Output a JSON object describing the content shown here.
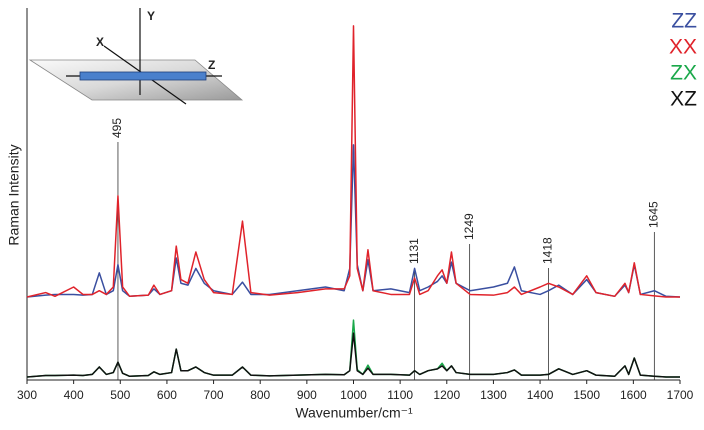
{
  "chart_data": {
    "type": "line",
    "x_label": "Wavenumber/cm⁻¹",
    "y_label": "Raman Intensity",
    "x": [
      300,
      340,
      360,
      400,
      420,
      440,
      455,
      470,
      485,
      495,
      505,
      520,
      560,
      572,
      585,
      610,
      620,
      630,
      645,
      662,
      680,
      700,
      740,
      762,
      780,
      820,
      880,
      940,
      980,
      992,
      1000,
      1008,
      1020,
      1031,
      1042,
      1080,
      1120,
      1131,
      1142,
      1160,
      1180,
      1190,
      1200,
      1210,
      1220,
      1250,
      1300,
      1330,
      1345,
      1360,
      1400,
      1418,
      1440,
      1470,
      1500,
      1520,
      1560,
      1582,
      1590,
      1602,
      1615,
      1645,
      1670,
      1700
    ],
    "series": [
      {
        "name": "ZZ",
        "color": "#3a4fa0",
        "values": [
          22.3,
          22.8,
          23,
          23,
          22.8,
          23,
          28.8,
          23,
          24,
          31,
          24,
          22.5,
          22.8,
          24.5,
          23,
          24,
          32.8,
          26,
          25.5,
          30,
          26,
          24,
          23,
          26.3,
          23,
          23,
          24,
          25,
          24,
          30,
          63.2,
          31,
          24,
          32.3,
          24,
          24.5,
          23.5,
          30,
          24,
          25,
          26.5,
          28,
          26,
          31.7,
          26,
          24,
          25,
          26,
          30.4,
          24,
          23,
          24,
          25.5,
          23,
          27,
          23.5,
          22.5,
          25.5,
          23.5,
          31,
          23,
          24,
          22.5,
          22.3
        ]
      },
      {
        "name": "XX",
        "color": "#e0232b",
        "values": [
          22.3,
          23.5,
          22.5,
          25,
          23,
          23,
          24,
          23,
          25,
          49.5,
          25,
          22.5,
          22.8,
          25.5,
          23,
          24,
          36,
          27,
          26,
          34.4,
          27,
          23.5,
          23,
          42.7,
          23.5,
          22.8,
          23.5,
          24.5,
          24.5,
          28,
          95.2,
          30,
          24,
          35,
          24,
          23,
          23,
          27.4,
          23,
          24,
          28,
          29.6,
          26,
          34.4,
          26,
          23,
          22.8,
          23.5,
          25,
          23,
          25,
          26,
          25,
          23,
          28,
          23.5,
          22.5,
          26,
          23.5,
          31.5,
          23,
          22.6,
          22.3,
          22.3
        ]
      },
      {
        "name": "ZX",
        "color": "#1aa84a",
        "values": [
          0.8,
          1.2,
          1.2,
          1.3,
          1.2,
          1.5,
          3.5,
          1.5,
          2,
          4.8,
          1.8,
          1,
          1.2,
          2.2,
          1.5,
          2,
          8.3,
          2.5,
          2.5,
          3.5,
          2,
          1.3,
          1.3,
          3.5,
          1.3,
          1.1,
          1.3,
          1.5,
          1.4,
          2.5,
          16.1,
          2.8,
          1.5,
          4,
          1.5,
          1.5,
          1.3,
          2.5,
          1.5,
          2.5,
          3,
          4.5,
          2.5,
          3.8,
          2,
          1.5,
          1.5,
          2,
          2.7,
          1.3,
          1.3,
          1.5,
          3,
          1.5,
          2.5,
          1.3,
          1,
          3.8,
          1.5,
          5.9,
          1.3,
          1,
          0.8,
          0.8
        ]
      },
      {
        "name": "XZ",
        "color": "#111111",
        "values": [
          0.8,
          1.2,
          1.2,
          1.3,
          1.2,
          1.5,
          3.5,
          1.5,
          2,
          4.8,
          1.8,
          1,
          1.2,
          2.2,
          1.5,
          2,
          8.3,
          2.5,
          2.5,
          3.5,
          2,
          1.3,
          1.3,
          3.5,
          1.3,
          1.1,
          1.3,
          1.5,
          1.4,
          2.5,
          12.6,
          2.5,
          1.5,
          3.2,
          1.5,
          1.5,
          1.3,
          2.5,
          1.5,
          2.5,
          3,
          3.8,
          2.5,
          3.8,
          2,
          1.5,
          1.5,
          2,
          2.7,
          1.3,
          1.3,
          1.5,
          3,
          1.5,
          2.5,
          1.3,
          1,
          3.8,
          1.5,
          5.9,
          1.3,
          1,
          0.8,
          0.8
        ]
      }
    ],
    "xlim": [
      300,
      1700
    ],
    "xticks": [
      300,
      400,
      500,
      600,
      700,
      800,
      900,
      1000,
      1100,
      1200,
      1300,
      1400,
      1500,
      1600,
      1700
    ],
    "ylim": [
      0,
      100
    ],
    "annotations": [
      495,
      1131,
      1249,
      1418,
      1645
    ],
    "legend": "upper right",
    "grid": false
  },
  "inset": {
    "x_label": "X",
    "y_label": "Y",
    "z_label": "Z"
  }
}
